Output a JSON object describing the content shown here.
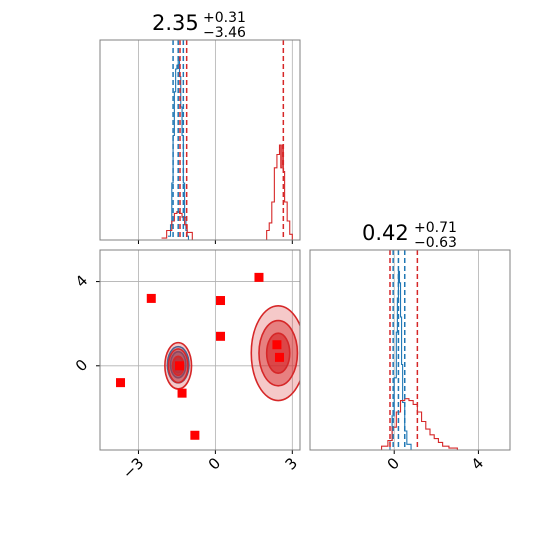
{
  "figure": {
    "title_1": {
      "value": "2.35",
      "upper": "+0.31",
      "lower": "−3.46"
    },
    "title_2": {
      "value": "0.42",
      "upper": "+0.71",
      "lower": "−0.63"
    },
    "colors": {
      "blue": "#1f77b4",
      "red": "#d62728",
      "marker": "#ff0000",
      "grid": "#b0b0b0",
      "frame": "#808080"
    }
  },
  "chart_data": [
    {
      "panel": "top-left",
      "type": "line",
      "description_of_content": "1D marginal histograms of parameter 1",
      "xlim": [
        -4.5,
        3.3
      ],
      "x_ticks": [
        -3,
        0,
        3
      ],
      "grid": true,
      "series": [
        {
          "color": "blue",
          "x": [
            -1.85,
            -1.75,
            -1.7,
            -1.65,
            -1.6,
            -1.55,
            -1.5,
            -1.45,
            -1.4,
            -1.35,
            -1.3,
            -1.25,
            -1.2,
            -1.15,
            -1.1,
            -1.05
          ],
          "y": [
            0.02,
            0.08,
            0.3,
            0.55,
            0.78,
            0.9,
            0.92,
            0.96,
            0.86,
            0.7,
            0.55,
            0.3,
            0.12,
            0.05,
            0.02,
            0.0
          ]
        },
        {
          "color": "red",
          "x": [
            -2.1,
            -1.9,
            -1.7,
            -1.6,
            -1.5,
            -1.4,
            -1.3,
            -1.2,
            -1.1,
            -0.9,
            1.7,
            2.0,
            2.1,
            2.2,
            2.3,
            2.4,
            2.5,
            2.55,
            2.6,
            2.65,
            2.7,
            2.8,
            2.9,
            3.0
          ],
          "y": [
            0.01,
            0.05,
            0.1,
            0.14,
            0.15,
            0.14,
            0.12,
            0.08,
            0.04,
            0.0,
            0.0,
            0.05,
            0.09,
            0.2,
            0.38,
            0.45,
            0.5,
            0.38,
            0.5,
            0.36,
            0.2,
            0.1,
            0.03,
            0.0
          ]
        }
      ],
      "quantile_lines": {
        "blue": [
          -1.65,
          -1.45,
          -1.25
        ],
        "red": [
          -1.38,
          -1.12,
          2.65
        ]
      }
    },
    {
      "panel": "bottom-left",
      "type": "scatter",
      "xlim": [
        -4.5,
        3.3
      ],
      "ylim": [
        -4.0,
        5.5
      ],
      "x_ticks": [
        -3,
        0,
        3
      ],
      "y_ticks": [
        0,
        4
      ],
      "x_tick_labels": [
        "−3",
        "0",
        "3"
      ],
      "y_tick_labels": [
        "0",
        "4"
      ],
      "grid": true,
      "markers": [
        {
          "x": -3.7,
          "y": -0.8
        },
        {
          "x": -2.5,
          "y": 3.2
        },
        {
          "x": -1.4,
          "y": 0.0
        },
        {
          "x": -1.3,
          "y": -1.3
        },
        {
          "x": -0.8,
          "y": -3.3
        },
        {
          "x": 0.2,
          "y": 3.1
        },
        {
          "x": 0.2,
          "y": 1.4
        },
        {
          "x": 1.7,
          "y": 4.2
        },
        {
          "x": 2.4,
          "y": 1.0
        },
        {
          "x": 2.5,
          "y": 0.4
        }
      ],
      "contours": [
        {
          "color": "blue",
          "center": [
            -1.45,
            0.05
          ],
          "levels": [
            [
              0.18,
              0.38
            ],
            [
              0.3,
              0.62
            ],
            [
              0.42,
              0.86
            ]
          ]
        },
        {
          "color": "red",
          "center": [
            -1.45,
            0.0
          ],
          "levels": [
            [
              0.22,
              0.45
            ],
            [
              0.38,
              0.8
            ],
            [
              0.52,
              1.1
            ]
          ]
        },
        {
          "color": "red",
          "center": [
            2.45,
            0.6
          ],
          "levels": [
            [
              0.45,
              0.95
            ],
            [
              0.75,
              1.55
            ],
            [
              1.05,
              2.25
            ]
          ]
        }
      ]
    },
    {
      "panel": "bottom-right",
      "type": "line",
      "description_of_content": "1D marginal histograms of parameter 2",
      "xlim": [
        -4.0,
        5.5
      ],
      "x_ticks": [
        0,
        4
      ],
      "x_tick_labels": [
        "0",
        "4"
      ],
      "grid": true,
      "series": [
        {
          "color": "blue",
          "x": [
            -0.4,
            -0.2,
            -0.1,
            0.0,
            0.1,
            0.15,
            0.2,
            0.25,
            0.3,
            0.35,
            0.4,
            0.5,
            0.6,
            0.8
          ],
          "y": [
            0.0,
            0.05,
            0.18,
            0.38,
            0.62,
            0.8,
            0.94,
            0.88,
            0.7,
            0.45,
            0.25,
            0.1,
            0.03,
            0.0
          ]
        },
        {
          "color": "red",
          "x": [
            -1.0,
            -0.6,
            -0.3,
            -0.1,
            0.1,
            0.3,
            0.5,
            0.7,
            0.9,
            1.1,
            1.3,
            1.5,
            1.7,
            1.9,
            2.1,
            2.3,
            2.6,
            3.0
          ],
          "y": [
            0.0,
            0.02,
            0.05,
            0.12,
            0.2,
            0.26,
            0.27,
            0.26,
            0.24,
            0.2,
            0.15,
            0.11,
            0.08,
            0.06,
            0.04,
            0.02,
            0.01,
            0.0
          ]
        }
      ],
      "quantile_lines": {
        "blue": [
          -0.05,
          0.2,
          0.5
        ],
        "red": [
          -0.2,
          1.1
        ]
      }
    }
  ]
}
